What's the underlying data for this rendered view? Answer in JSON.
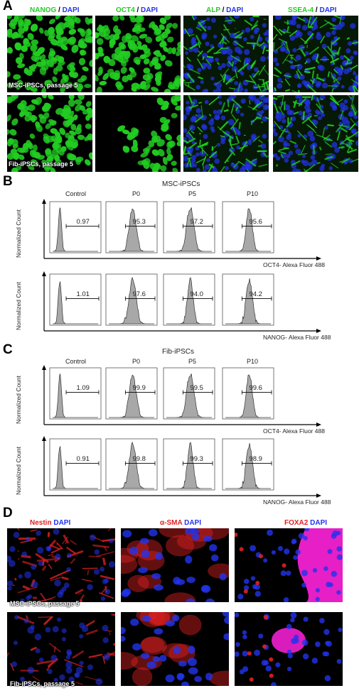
{
  "panelA": {
    "letter": "A",
    "columns": [
      {
        "marker": "NANOG",
        "sep": " / ",
        "dapi": "DAPI",
        "marker_color": "#22cc22",
        "style": "nuclear"
      },
      {
        "marker": "OCT4",
        "sep": " / ",
        "dapi": "DAPI",
        "marker_color": "#22cc22",
        "style": "nuclear"
      },
      {
        "marker": "ALP",
        "sep": " / ",
        "dapi": "DAPI",
        "marker_color": "#22cc22",
        "style": "mesh"
      },
      {
        "marker": "SSEA-4",
        "sep": " / ",
        "dapi": "DAPI",
        "marker_color": "#22cc22",
        "style": "mesh"
      }
    ],
    "rows": [
      "MSC-iPSCs, passage 5",
      "Fib-iPSCs, passage 5"
    ]
  },
  "panelB": {
    "letter": "B",
    "title": "MSC-iPSCs",
    "columns": [
      "Control",
      "P0",
      "P5",
      "P10"
    ],
    "ylabel": "Normalized Count",
    "rows": [
      {
        "xlabel": "OCT4- Alexa Fluor 488",
        "values": [
          "0.97",
          "95.3",
          "97.2",
          "95.6"
        ]
      },
      {
        "xlabel": "NANOG- Alexa Fluor 488",
        "values": [
          "1.01",
          "97.6",
          "94.0",
          "94.2"
        ]
      }
    ]
  },
  "panelC": {
    "letter": "C",
    "title": "Fib-iPSCs",
    "columns": [
      "Control",
      "P0",
      "P5",
      "P10"
    ],
    "ylabel": "Normalized Count",
    "rows": [
      {
        "xlabel": "OCT4- Alexa Fluor 488",
        "values": [
          "1.09",
          "99.9",
          "99.5",
          "99.6"
        ]
      },
      {
        "xlabel": "NANOG- Alexa Fluor 488",
        "values": [
          "0.91",
          "99.8",
          "99.3",
          "98.9"
        ]
      }
    ]
  },
  "panelD": {
    "letter": "D",
    "columns": [
      {
        "marker": "Nestin",
        "dapi": " DAPI",
        "marker_color": "#dd2222"
      },
      {
        "marker": "α-SMA",
        "dapi": " DAPI",
        "marker_color": "#dd2222"
      },
      {
        "marker": "FOXA2",
        "dapi": " DAPI",
        "marker_color": "#dd2222"
      }
    ],
    "rows": [
      "MSC-iPSCs, passage 5",
      "Fib-iPSCs, passage 5"
    ]
  },
  "colors": {
    "green": "#22cc22",
    "dapi_blue": "#2233ee",
    "red": "#dd2222",
    "magenta": "#ff22dd",
    "histogram_fill": "#a8a8a8"
  }
}
